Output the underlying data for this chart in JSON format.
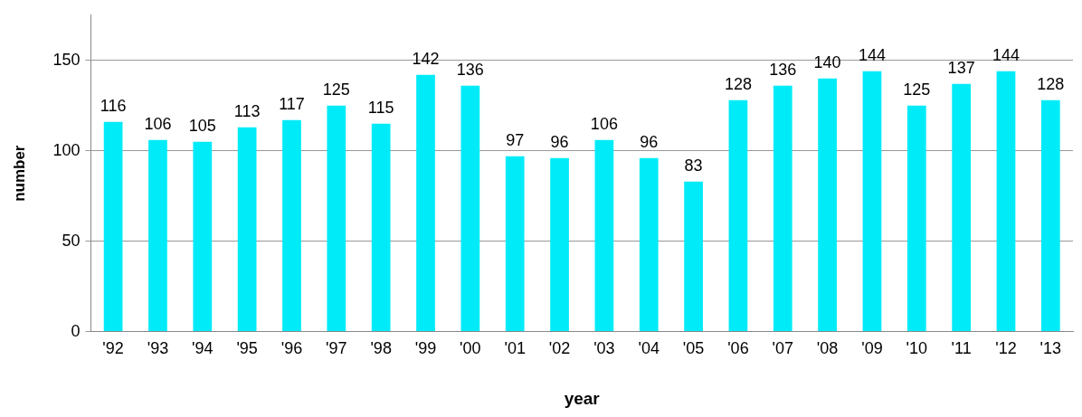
{
  "chart_data": {
    "type": "bar",
    "xlabel": "year",
    "ylabel": "number",
    "categories": [
      "'92",
      "'93",
      "'94",
      "'95",
      "'96",
      "'97",
      "'98",
      "'99",
      "'00",
      "'01",
      "'02",
      "'03",
      "'04",
      "'05",
      "'06",
      "'07",
      "'08",
      "'09",
      "'10",
      "'11",
      "'12",
      "'13"
    ],
    "values": [
      116,
      106,
      105,
      113,
      117,
      125,
      115,
      142,
      136,
      97,
      96,
      106,
      96,
      83,
      128,
      136,
      140,
      144,
      125,
      137,
      144,
      128
    ],
    "color": "#00ebf8",
    "ylim": [
      0,
      175
    ],
    "yticks": [
      0,
      50,
      100,
      150
    ],
    "grid": "y",
    "data_labels": true,
    "legend": false
  }
}
